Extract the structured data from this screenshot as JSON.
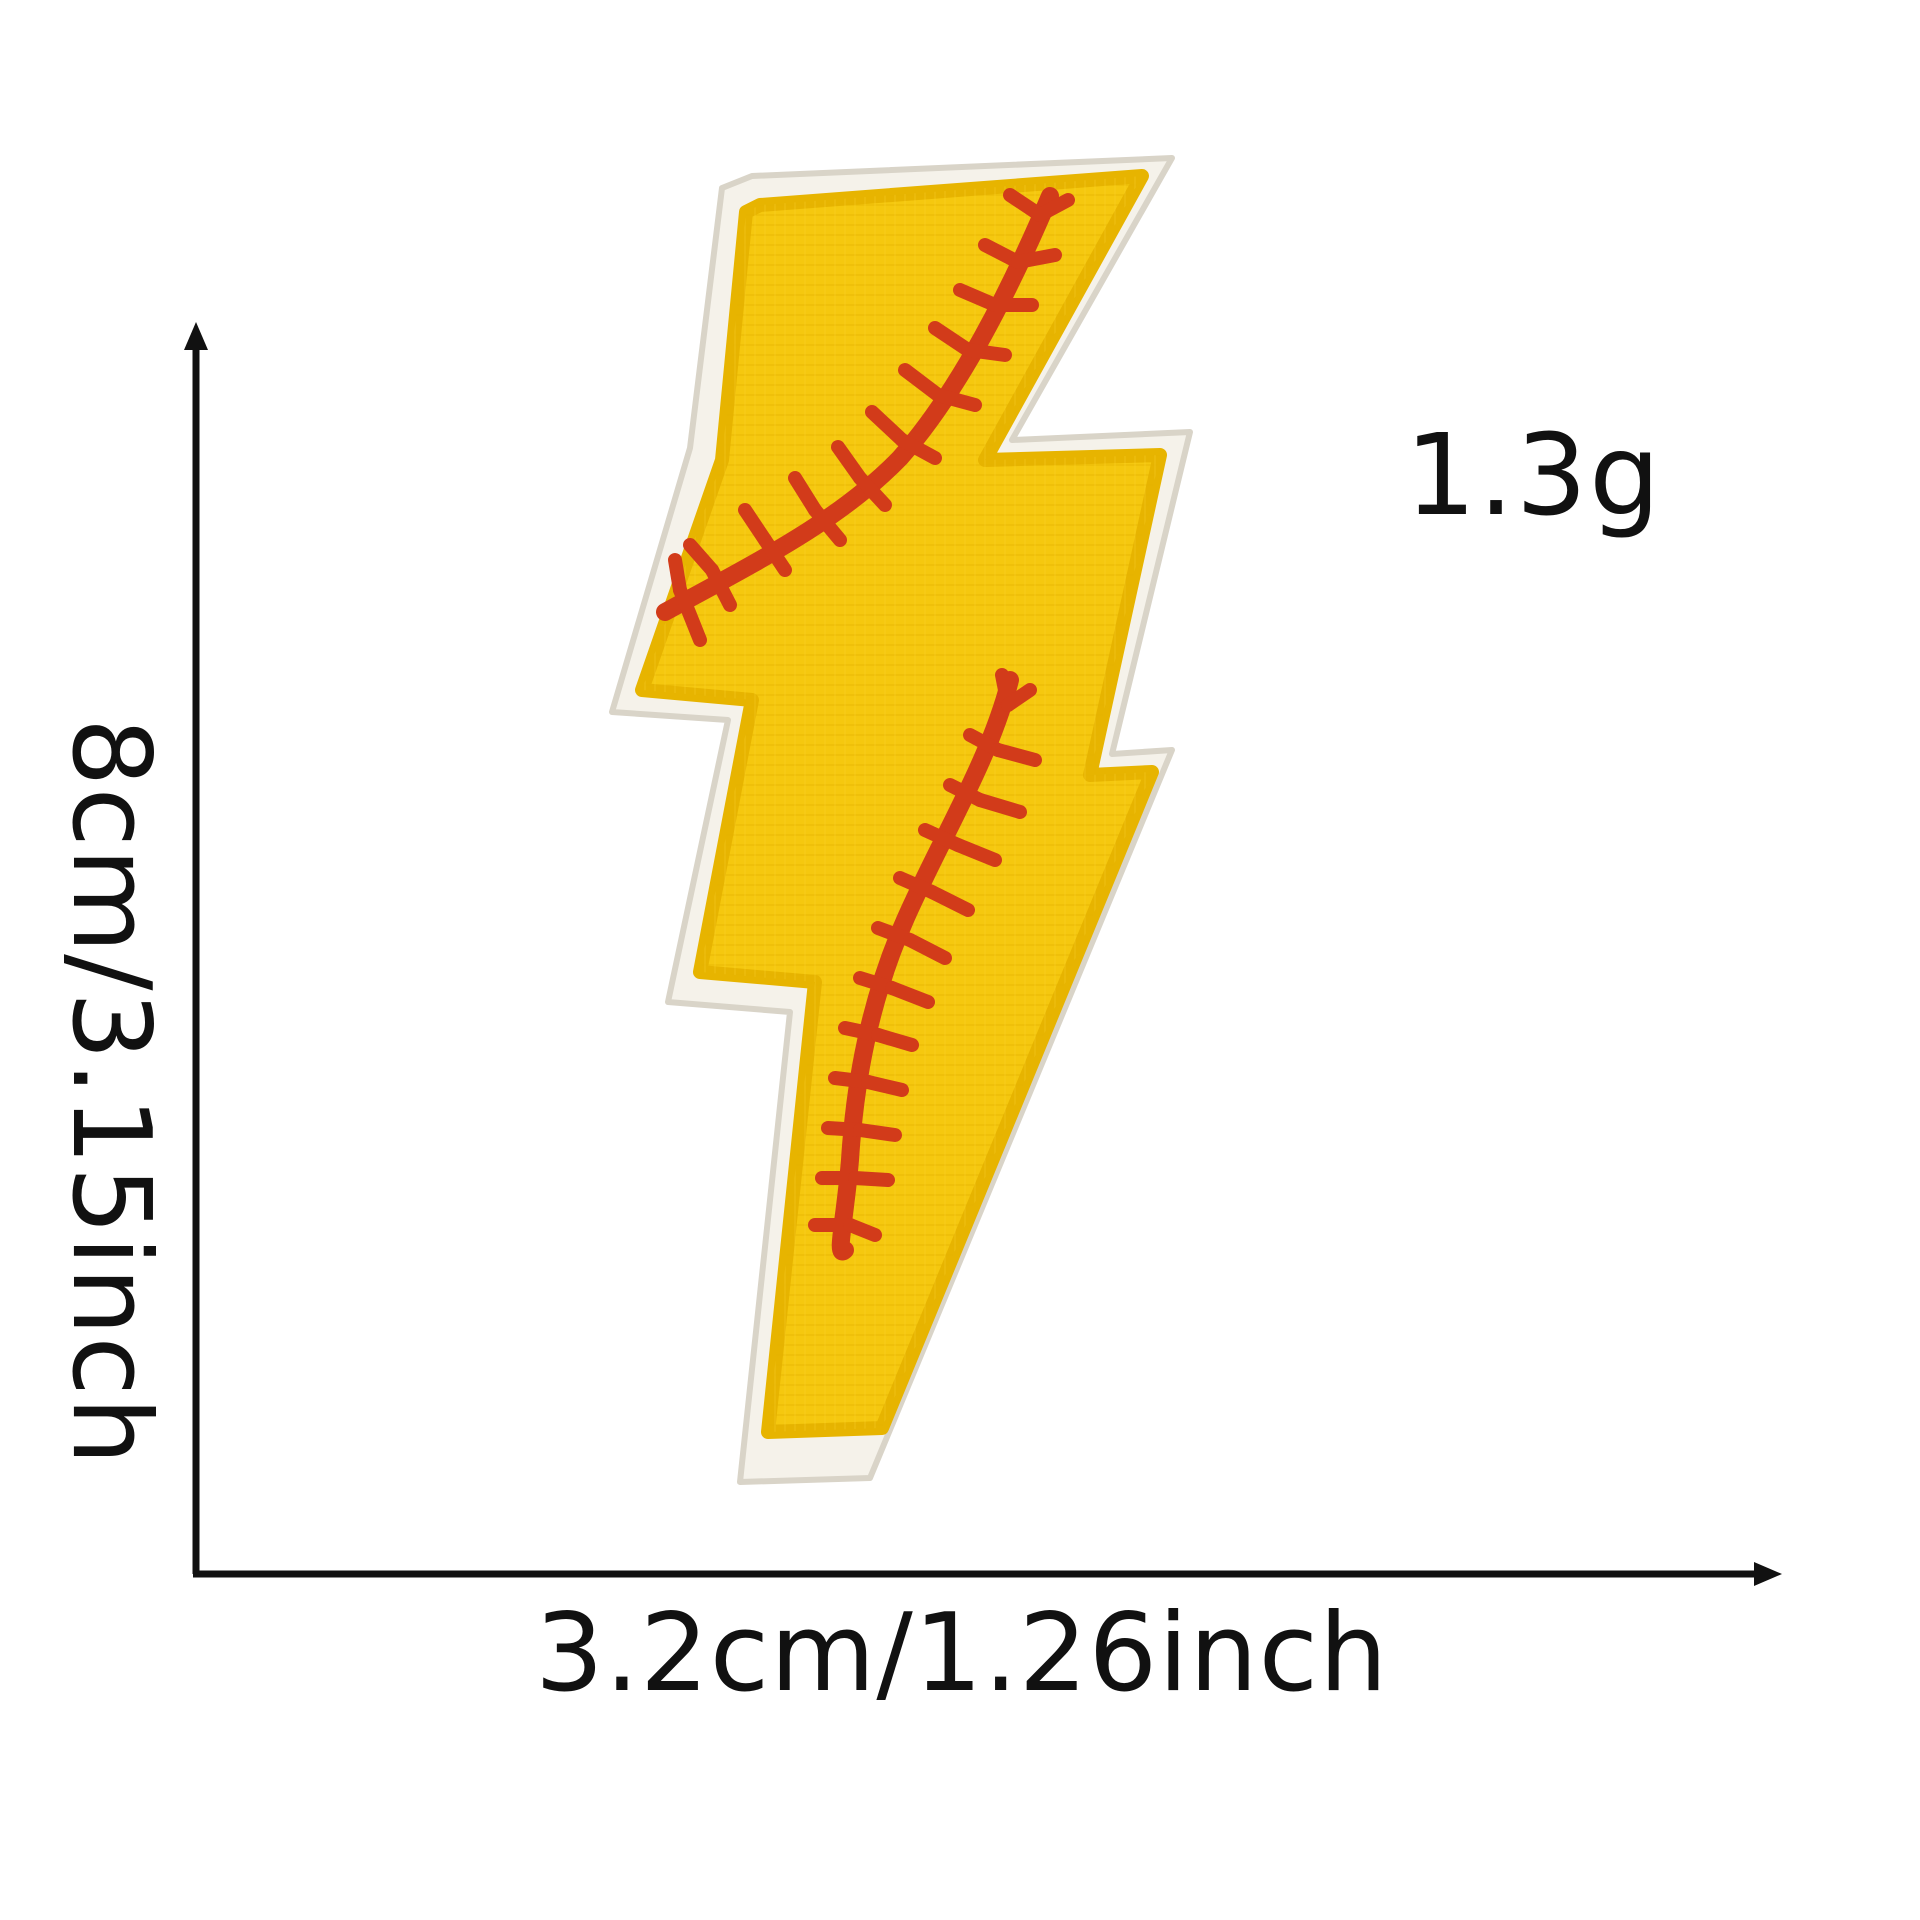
{
  "product": {
    "name_icon": "lightning-bolt-softball-patch-icon",
    "colors": {
      "fill": "#f5c80f",
      "fill_shadow": "#e7b400",
      "border": "#f5f2ea",
      "border_shadow": "#d9d4c8",
      "stitch": "#d23b1a",
      "stitch_dark": "#b52a0f"
    }
  },
  "measurements": {
    "weight": "1.3g",
    "width": "3.2cm/1.26inch",
    "height": "8cm/3.15inch"
  },
  "axes": {
    "color": "#111111"
  }
}
